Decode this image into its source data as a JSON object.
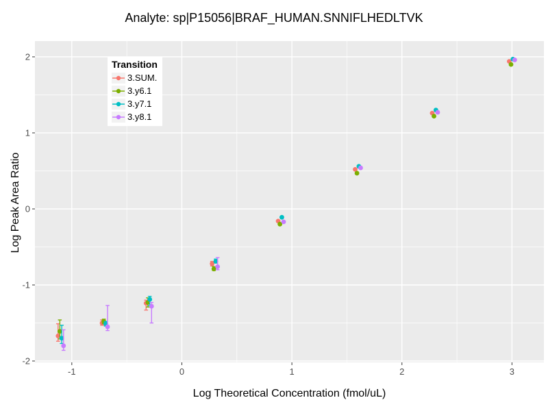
{
  "title": "Analyte: sp|P15056|BRAF_HUMAN.SNNIFLHEDLTVK",
  "chart_data": {
    "type": "scatter",
    "variant": "pointrange-with-errorbars",
    "title": "Analyte: sp|P15056|BRAF_HUMAN.SNNIFLHEDLTVK",
    "xlabel": "Log Theoretical Concentration (fmol/uL)",
    "ylabel": "Log Peak Area Ratio",
    "xlim": [
      -1.335,
      3.29
    ],
    "ylim": [
      -2.018,
      2.207
    ],
    "x_ticks": [
      -1,
      0,
      1,
      2,
      3
    ],
    "x_tick_labels": [
      "-1",
      "0",
      "1",
      "2",
      "3"
    ],
    "y_ticks": [
      -2,
      -1,
      0,
      1,
      2
    ],
    "y_tick_labels": [
      "-2",
      "-1",
      "0",
      "1",
      "2"
    ],
    "x_minor_ticks": [
      -0.5,
      0.5,
      1.5,
      2.5
    ],
    "y_minor_ticks": [
      -1.5,
      -0.5,
      0.5,
      1.5
    ],
    "grid": true,
    "legend_position": "top-left-inside",
    "legend_title": "Transition",
    "panel_bg": "#EBEBEB",
    "grid_color": "#FFFFFF",
    "tick_label_color": "#4D4D4D",
    "tick_mark_color": "#333333",
    "x": [
      -1.1,
      -0.7,
      -0.3,
      0.3,
      0.9,
      1.6,
      2.3,
      3.0
    ],
    "series": [
      {
        "name": "3.SUM.",
        "color": "#F8766D",
        "y": [
          -1.67,
          -1.5,
          -1.24,
          -0.72,
          -0.16,
          0.52,
          1.26,
          1.94
        ],
        "ylo": [
          -1.74,
          -1.53,
          -1.33,
          -0.75,
          -0.16,
          0.52,
          1.26,
          1.94
        ],
        "yhi": [
          -1.51,
          -1.46,
          -1.2,
          -0.69,
          -0.16,
          0.52,
          1.26,
          1.94
        ]
      },
      {
        "name": "3.y6.1",
        "color": "#7CAE00",
        "y": [
          -1.61,
          -1.48,
          -1.23,
          -0.79,
          -0.2,
          0.47,
          1.22,
          1.9
        ],
        "ylo": [
          -1.71,
          -1.51,
          -1.29,
          -0.81,
          -0.2,
          0.47,
          1.22,
          1.9
        ],
        "yhi": [
          -1.46,
          -1.45,
          -1.17,
          -0.76,
          -0.2,
          0.47,
          1.22,
          1.9
        ]
      },
      {
        "name": "3.y7.1",
        "color": "#00BFC4",
        "y": [
          -1.7,
          -1.51,
          -1.19,
          -0.69,
          -0.11,
          0.56,
          1.3,
          1.97
        ],
        "ylo": [
          -1.77,
          -1.54,
          -1.27,
          -0.71,
          -0.11,
          0.56,
          1.3,
          1.97
        ],
        "yhi": [
          -1.53,
          -1.48,
          -1.15,
          -0.66,
          -0.11,
          0.56,
          1.3,
          1.97
        ]
      },
      {
        "name": "3.y8.1",
        "color": "#C77CFF",
        "y": [
          -1.8,
          -1.55,
          -1.28,
          -0.76,
          -0.17,
          0.54,
          1.27,
          1.96
        ],
        "ylo": [
          -1.86,
          -1.6,
          -1.5,
          -0.8,
          -0.17,
          0.54,
          1.27,
          1.96
        ],
        "yhi": [
          -1.59,
          -1.27,
          -1.23,
          -0.64,
          -0.17,
          0.54,
          1.27,
          1.96
        ]
      }
    ]
  }
}
